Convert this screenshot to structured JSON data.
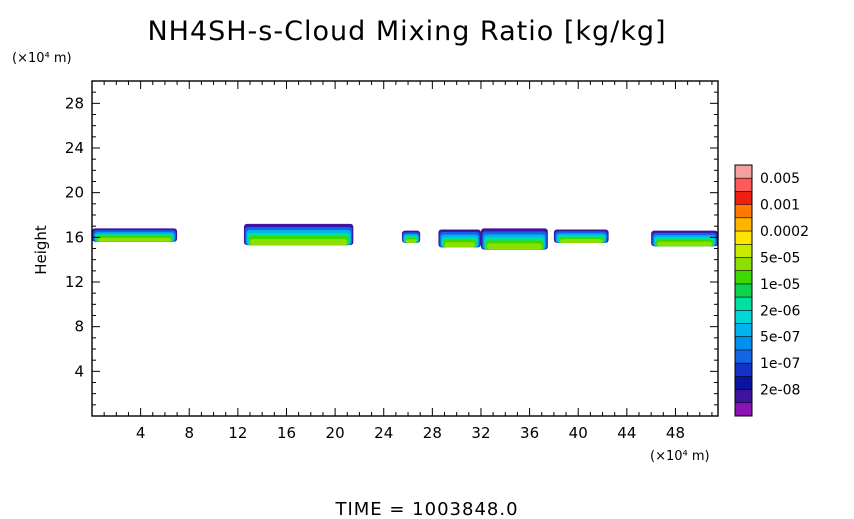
{
  "chart_data": {
    "type": "heatmap",
    "title": "NH4SH-s-Cloud Mixing Ratio [kg/kg]",
    "xlabel": "",
    "ylabel": "Height",
    "x_unit": "(×10⁴ m)",
    "y_unit": "(×10⁴ m)",
    "xlim": [
      0,
      51.5
    ],
    "ylim": [
      0,
      30
    ],
    "x_ticks": [
      4,
      8,
      12,
      16,
      20,
      24,
      28,
      32,
      36,
      40,
      44,
      48
    ],
    "y_ticks": [
      4,
      8,
      12,
      16,
      20,
      24,
      28
    ],
    "time_label": "TIME = 1003848.0",
    "colorbar": {
      "labels": [
        "0.005",
        "0.001",
        "0.0002",
        "5e-05",
        "1e-05",
        "2e-06",
        "5e-07",
        "1e-07",
        "2e-08"
      ],
      "colors": [
        "#f4a0a0",
        "#ff5a5a",
        "#f02010",
        "#ff7a00",
        "#ffb400",
        "#ffe600",
        "#c8ec00",
        "#8ce000",
        "#3cd800",
        "#10d050",
        "#00e0a0",
        "#00d8d8",
        "#00b4f0",
        "#0090f0",
        "#1464e6",
        "#1432c8",
        "#0a14a0",
        "#3c14a0",
        "#8c14b4"
      ]
    },
    "cloud_segments": [
      {
        "x_start": 0.0,
        "x_end": 7.0,
        "bottom": 15.6,
        "top": 16.8
      },
      {
        "x_start": 12.5,
        "x_end": 21.5,
        "bottom": 15.3,
        "top": 17.2
      },
      {
        "x_start": 25.5,
        "x_end": 27.0,
        "bottom": 15.5,
        "top": 16.6
      },
      {
        "x_start": 28.5,
        "x_end": 32.0,
        "bottom": 15.1,
        "top": 16.7
      },
      {
        "x_start": 32.0,
        "x_end": 37.5,
        "bottom": 14.9,
        "top": 16.8
      },
      {
        "x_start": 38.0,
        "x_end": 42.5,
        "bottom": 15.5,
        "top": 16.7
      },
      {
        "x_start": 46.0,
        "x_end": 51.5,
        "bottom": 15.2,
        "top": 16.6
      }
    ]
  }
}
